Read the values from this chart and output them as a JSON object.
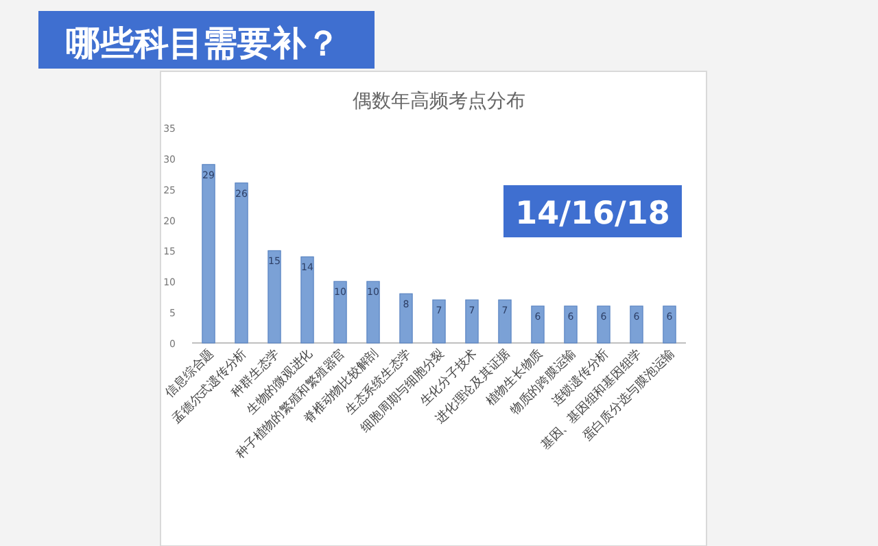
{
  "chart_data": {
    "type": "bar",
    "title": "哪些科目需要补？",
    "subtitle": "偶数年高频考点分布",
    "annotations": [
      "14/16/18"
    ],
    "categories": [
      "信息综合题",
      "孟德尔式遗传分析",
      "种群生态学",
      "生物的微观进化",
      "种子植物的繁殖和繁殖器官",
      "脊椎动物比较解剖",
      "生态系统生态学",
      "细胞周期与细胞分裂",
      "生化分子技术",
      "进化理论及其证据",
      "植物生长物质",
      "物质的跨膜运输",
      "连锁遗传分析",
      "基因、基因组和基因组学",
      "蛋白质分选与膜泡运输"
    ],
    "values": [
      29,
      26,
      15,
      14,
      10,
      10,
      8,
      7,
      7,
      7,
      6,
      6,
      6,
      6,
      6
    ],
    "color": "#7ba1d6",
    "ylim": [
      0,
      35
    ],
    "yticks": [
      0,
      5,
      10,
      15,
      20,
      25,
      30,
      35
    ],
    "data_labels": true,
    "grid": false
  }
}
